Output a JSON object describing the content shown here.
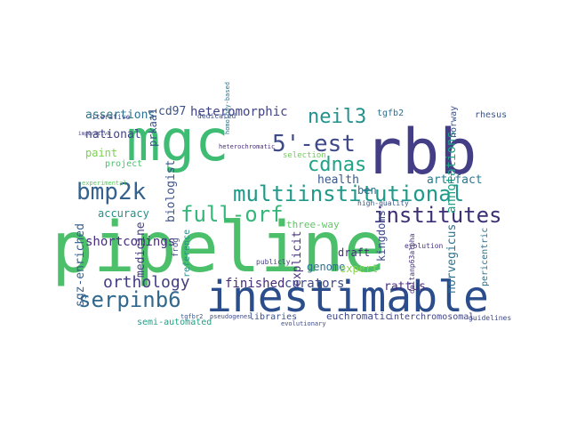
{
  "words": [
    {
      "text": "pipeline",
      "color": "#4cbf6a"
    },
    {
      "text": "mgc",
      "color": "#3fbc73"
    },
    {
      "text": "rbb",
      "color": "#433e85"
    },
    {
      "text": "inestimable",
      "color": "#2c4d8b"
    },
    {
      "text": "multiinstitutional",
      "color": "#1f9a8a"
    },
    {
      "text": "institutes",
      "color": "#3d2f76"
    },
    {
      "text": "bmp2k",
      "color": "#34618d"
    },
    {
      "text": "full-orf",
      "color": "#35b779"
    },
    {
      "text": "5'-est",
      "color": "#3e4a89"
    },
    {
      "text": "serpinb6",
      "color": "#31688e"
    },
    {
      "text": "neil3",
      "color": "#21918c"
    },
    {
      "text": "cdnas",
      "color": "#20a386"
    },
    {
      "text": "orthology",
      "color": "#433d84"
    },
    {
      "text": "heteromorphic",
      "color": "#414487"
    },
    {
      "text": "assertions",
      "color": "#2c728e"
    },
    {
      "text": "shortcomings",
      "color": "#472d7b"
    },
    {
      "text": "cd97",
      "color": "#3b528b"
    },
    {
      "text": "national",
      "color": "#414487"
    },
    {
      "text": "accuracy",
      "color": "#21918c"
    },
    {
      "text": "annotations",
      "color": "#20a386"
    },
    {
      "text": "health",
      "color": "#38598c"
    },
    {
      "text": "artifact",
      "color": "#2a788e"
    },
    {
      "text": "finished",
      "color": "#472c7a"
    },
    {
      "text": "curators",
      "color": "#3e4a89"
    },
    {
      "text": "three-way",
      "color": "#5ec962"
    },
    {
      "text": "ben",
      "color": "#2f6c8e"
    },
    {
      "text": "paint",
      "color": "#7ad151"
    },
    {
      "text": "prkaa1",
      "color": "#3b528b"
    },
    {
      "text": "biologist",
      "color": "#3b528b"
    },
    {
      "text": "medicine",
      "color": "#433e85"
    },
    {
      "text": "sgz-enriched",
      "color": "#355f8d"
    },
    {
      "text": "explicit",
      "color": "#46327e"
    },
    {
      "text": "rattus",
      "color": "#472d7b"
    },
    {
      "text": "genome",
      "color": "#2c728e"
    },
    {
      "text": "draft",
      "color": "#472f7d"
    },
    {
      "text": "expert",
      "color": "#86d549"
    },
    {
      "text": "kingdoms",
      "color": "#3e4989"
    },
    {
      "text": "norvegicus",
      "color": "#2c728e"
    },
    {
      "text": "euchromatic",
      "color": "#3f4788"
    },
    {
      "text": "interchromosomal",
      "color": "#414487"
    },
    {
      "text": "semi-automated",
      "color": "#1fa088"
    },
    {
      "text": "libraries",
      "color": "#3b528b"
    },
    {
      "text": "selection",
      "color": "#6ece58"
    },
    {
      "text": "project",
      "color": "#4ac16d"
    },
    {
      "text": "rhesus",
      "color": "#39558c"
    },
    {
      "text": "tgfb2",
      "color": "#2e6e8e"
    },
    {
      "text": "norway",
      "color": "#3b528b"
    },
    {
      "text": "frog",
      "color": "#3b528b"
    },
    {
      "text": "reference",
      "color": "#21918c"
    },
    {
      "text": "publicly",
      "color": "#433e85"
    },
    {
      "text": "pericentric",
      "color": "#2c728e"
    },
    {
      "text": "guidelines",
      "color": "#3e4989"
    },
    {
      "text": "evolutionary",
      "color": "#3e4a89"
    },
    {
      "text": "deltanp63alpha",
      "color": "#46307e"
    },
    {
      "text": "iterative",
      "color": "#3e4989"
    },
    {
      "text": "dedicated",
      "color": "#3b528b"
    },
    {
      "text": "heterochromatic",
      "color": "#472d7b"
    },
    {
      "text": "high-quality",
      "color": "#39568c"
    },
    {
      "text": "evolution",
      "color": "#46337f"
    },
    {
      "text": "pseudogenes",
      "color": "#3e4a89"
    },
    {
      "text": "tgfbr2",
      "color": "#3b528b"
    },
    {
      "text": "experimental",
      "color": "#5ec962"
    },
    {
      "text": "imperative",
      "color": "#433e85"
    },
    {
      "text": "homology-based",
      "color": "#2c728e"
    }
  ]
}
